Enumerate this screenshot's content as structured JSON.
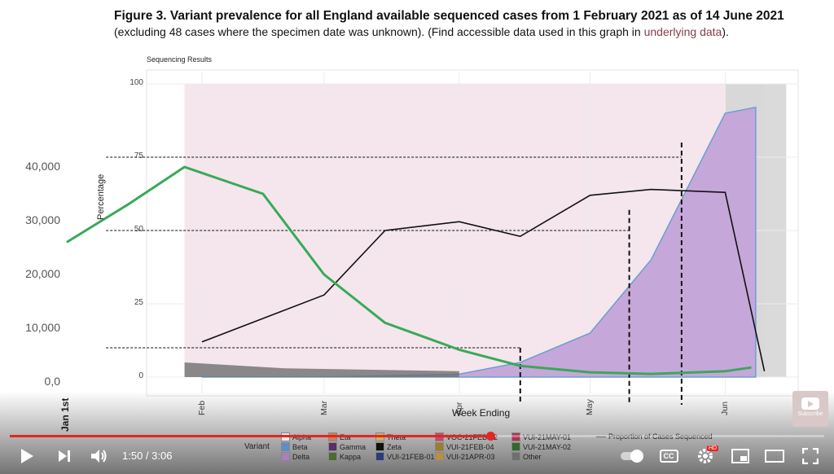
{
  "figure": {
    "title": "Figure 3. Variant prevalence for all England available sequenced cases from 1 February 2021 as of 14 June 2021",
    "subtitle_before": "(excluding 48 cases where the specimen date was unknown). (Find accessible data used in this graph in ",
    "subtitle_link": "underlying data",
    "subtitle_after": ")."
  },
  "chart_data": [
    {
      "type": "area",
      "title": "Sequencing Results",
      "xlabel": "Week Ending",
      "ylabel": "Percentage",
      "x_ticks": [
        "Feb",
        "Mar",
        "Apr",
        "May",
        "Jun"
      ],
      "y_ticks": [
        "0",
        "25",
        "50",
        "75",
        "100"
      ],
      "ylim": [
        0,
        100
      ],
      "series": [
        {
          "name": "Alpha",
          "x": [
            "2021-02-01",
            "2021-03-01",
            "2021-04-01",
            "2021-04-15",
            "2021-05-01",
            "2021-05-15",
            "2021-06-01",
            "2021-06-08"
          ],
          "values": [
            95,
            97,
            97,
            96,
            88,
            60,
            8,
            6
          ]
        },
        {
          "name": "Delta",
          "x": [
            "2021-02-01",
            "2021-03-01",
            "2021-04-01",
            "2021-04-15",
            "2021-05-01",
            "2021-05-15",
            "2021-06-01",
            "2021-06-08"
          ],
          "values": [
            0,
            0,
            1,
            5,
            15,
            40,
            90,
            92
          ]
        },
        {
          "name": "Proportion of Cases Sequenced",
          "x": [
            "2021-02-01",
            "2021-02-15",
            "2021-03-01",
            "2021-03-15",
            "2021-04-01",
            "2021-04-15",
            "2021-05-01",
            "2021-05-15",
            "2021-06-01",
            "2021-06-10"
          ],
          "values": [
            12,
            20,
            28,
            50,
            53,
            48,
            62,
            64,
            63,
            2
          ]
        }
      ],
      "legend_title": "Variant",
      "legend": [
        "Alpha",
        "Beta",
        "Delta",
        "Eta",
        "Gamma",
        "Kappa",
        "Theta",
        "Zeta",
        "VUI-21FEB-01",
        "VOC-21FEB-02",
        "VUI-21FEB-04",
        "VUI-21APR-03",
        "VUI-21MAY-01",
        "VUI-21MAY-02",
        "Other",
        "Proportion of Cases Sequenced"
      ],
      "legend_colors": [
        "#f2e6ea",
        "#5b8fc9",
        "#a87fc0",
        "#c9834d",
        "#5a2d6b",
        "#4e6b2f",
        "#c9b25e",
        "#111111",
        "#2c3c7a",
        "#c24a6b",
        "#9c7d2a",
        "#b89040",
        "#b03050",
        "#2d6b2d",
        "#6f6f6f"
      ]
    },
    {
      "type": "line",
      "title": "",
      "y_ticks": [
        "0,0",
        "10,000",
        "20,000",
        "30,000",
        "40,000"
      ],
      "x_ticks": [
        "Jan 1st"
      ],
      "series": [
        {
          "name": "",
          "x": [
            "2021-01-01",
            "2021-01-15",
            "2021-01-28",
            "2021-02-15",
            "2021-03-01",
            "2021-03-15",
            "2021-04-01",
            "2021-04-15",
            "2021-05-01",
            "2021-05-15",
            "2021-06-01",
            "2021-06-07"
          ],
          "values": [
            26000,
            33000,
            40000,
            35000,
            20000,
            11000,
            6000,
            3000,
            1800,
            1500,
            2000,
            2700
          ]
        }
      ]
    }
  ],
  "player": {
    "current_time": "1:50",
    "duration": "3:06",
    "time_separator": " / ",
    "progress": 0.59,
    "quality_badge": "HD",
    "subscribe_label": "Subscribe",
    "cc_label": "CC"
  },
  "colors": {
    "green_curve": "#3aa85a",
    "delta_fill": "#c6a7d9",
    "alpha_fill": "#f4e6ec",
    "progress_red": "#e52521"
  }
}
